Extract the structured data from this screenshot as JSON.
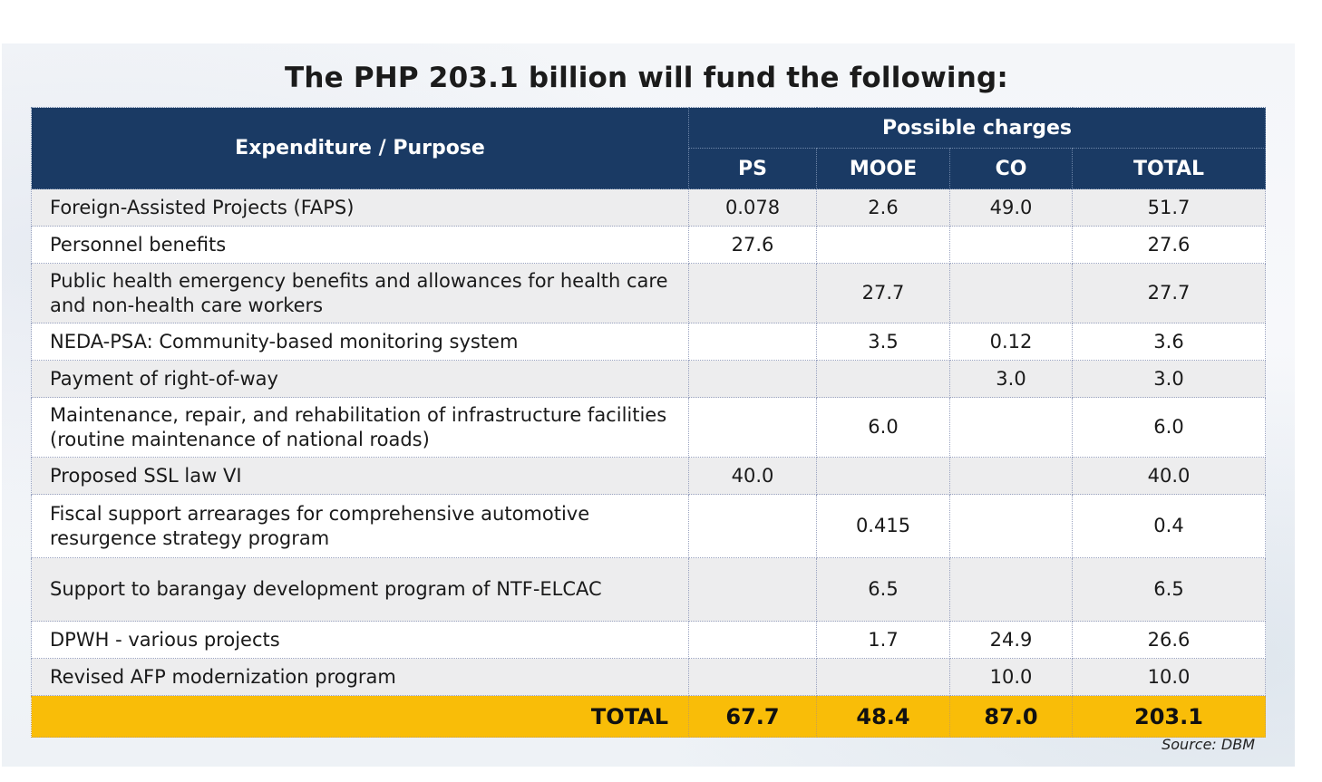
{
  "title": "The PHP 203.1 billion will fund the following:",
  "table": {
    "header_purpose": "Expenditure / Purpose",
    "header_group": "Possible charges",
    "columns": [
      "PS",
      "MOOE",
      "CO",
      "TOTAL"
    ],
    "rows": [
      {
        "purpose": "Foreign-Assisted Projects (FAPS)",
        "ps": "0.078",
        "mooe": "2.6",
        "co": "49.0",
        "total": "51.7"
      },
      {
        "purpose": "Personnel benefits",
        "ps": "27.6",
        "mooe": "",
        "co": "",
        "total": "27.6"
      },
      {
        "purpose": "Public health emergency benefits and allowances for health care and non-health care workers",
        "ps": "",
        "mooe": "27.7",
        "co": "",
        "total": "27.7"
      },
      {
        "purpose": "NEDA-PSA: Community-based monitoring system",
        "ps": "",
        "mooe": "3.5",
        "co": "0.12",
        "total": "3.6"
      },
      {
        "purpose": "Payment of right-of-way",
        "ps": "",
        "mooe": "",
        "co": "3.0",
        "total": "3.0"
      },
      {
        "purpose": "Maintenance, repair, and rehabilitation of infrastructure facilities (routine maintenance of national roads)",
        "ps": "",
        "mooe": "6.0",
        "co": "",
        "total": "6.0"
      },
      {
        "purpose": "Proposed SSL law VI",
        "ps": "40.0",
        "mooe": "",
        "co": "",
        "total": "40.0"
      },
      {
        "purpose": "Fiscal support arrearages for comprehensive automotive resurgence strategy program",
        "ps": "",
        "mooe": "0.415",
        "co": "",
        "total": "0.4"
      },
      {
        "purpose": "Support to barangay development program of NTF-ELCAC",
        "ps": "",
        "mooe": "6.5",
        "co": "",
        "total": "6.5"
      },
      {
        "purpose": "DPWH - various projects",
        "ps": "",
        "mooe": "1.7",
        "co": "24.9",
        "total": "26.6"
      },
      {
        "purpose": "Revised AFP modernization program",
        "ps": "",
        "mooe": "",
        "co": "10.0",
        "total": "10.0"
      }
    ],
    "footer": {
      "label": "TOTAL",
      "ps": "67.7",
      "mooe": "48.4",
      "co": "87.0",
      "total": "203.1"
    }
  },
  "source": "Source: DBM",
  "colors": {
    "header": "#1a3a64",
    "total_row": "#f9bd08",
    "row_shade": "#ededee"
  }
}
